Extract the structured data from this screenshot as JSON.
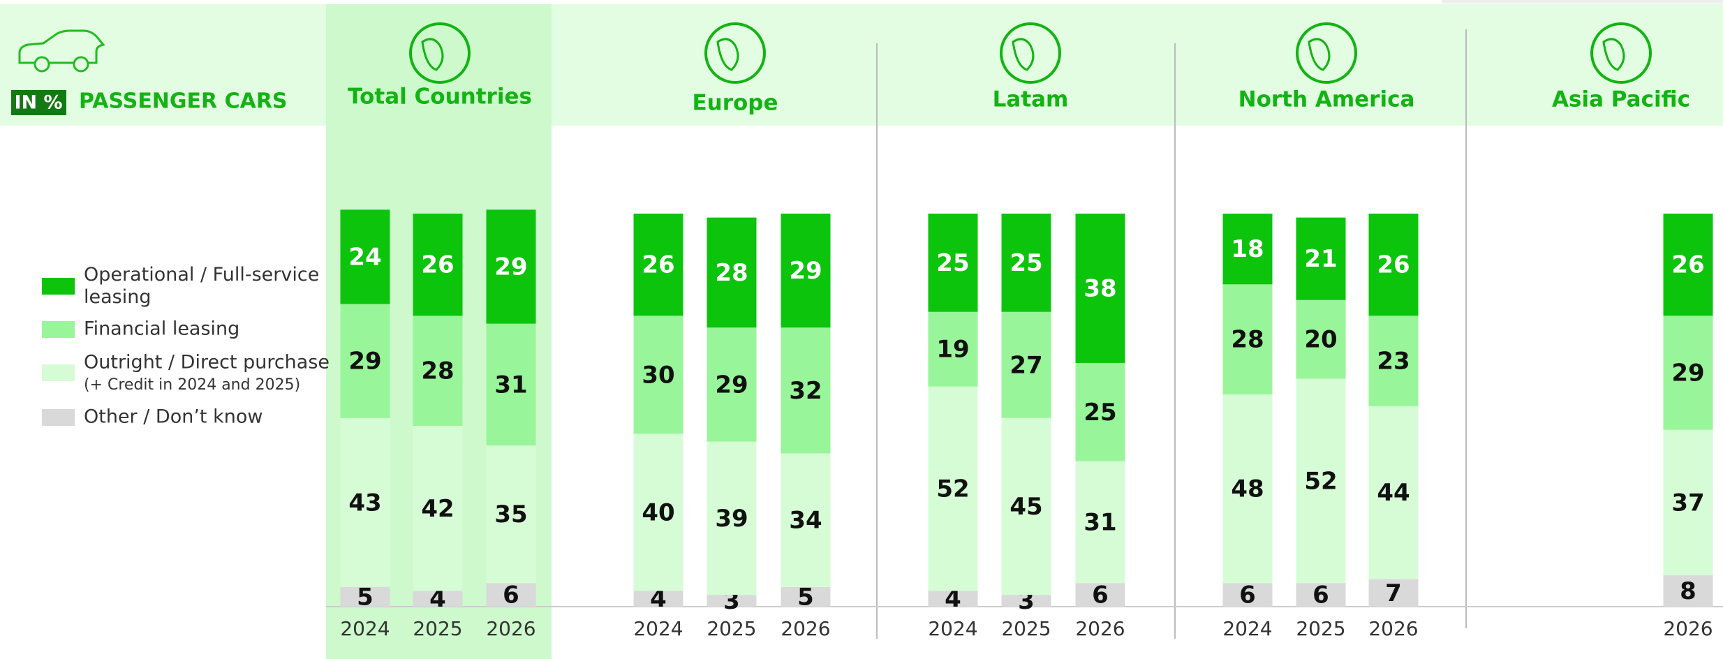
{
  "chart_data": {
    "type": "stacked_bar",
    "unit_label": "IN %",
    "title": "PASSENGER CARS",
    "groups": [
      {
        "name": "Total Countries",
        "categories": [
          "2024",
          "2025",
          "2026"
        ]
      },
      {
        "name": "Europe",
        "categories": [
          "2024",
          "2025",
          "2026"
        ]
      },
      {
        "name": "Latam",
        "categories": [
          "2024",
          "2025",
          "2026"
        ]
      },
      {
        "name": "North America",
        "categories": [
          "2024",
          "2025",
          "2026"
        ]
      },
      {
        "name": "Asia Pacific",
        "categories": [
          "2026"
        ]
      }
    ],
    "series": [
      {
        "name": "Operational / Full-service leasing",
        "color": "#0cc40c",
        "values": [
          24,
          26,
          29,
          26,
          28,
          29,
          25,
          25,
          38,
          18,
          21,
          26,
          26
        ]
      },
      {
        "name": "Financial leasing",
        "color": "#99f599",
        "values": [
          29,
          28,
          31,
          30,
          29,
          32,
          19,
          27,
          25,
          28,
          20,
          23,
          29
        ]
      },
      {
        "name": "Outright / Direct purchase",
        "note": "(+ Credit in 2024 and 2025)",
        "color": "#d6fcd6",
        "values": [
          43,
          42,
          35,
          40,
          39,
          34,
          52,
          45,
          31,
          48,
          52,
          44,
          37
        ]
      },
      {
        "name": "Other / Don’t know",
        "color": "#d9d9d9",
        "values": [
          5,
          4,
          6,
          4,
          3,
          5,
          4,
          3,
          6,
          6,
          6,
          7,
          8
        ]
      }
    ]
  }
}
